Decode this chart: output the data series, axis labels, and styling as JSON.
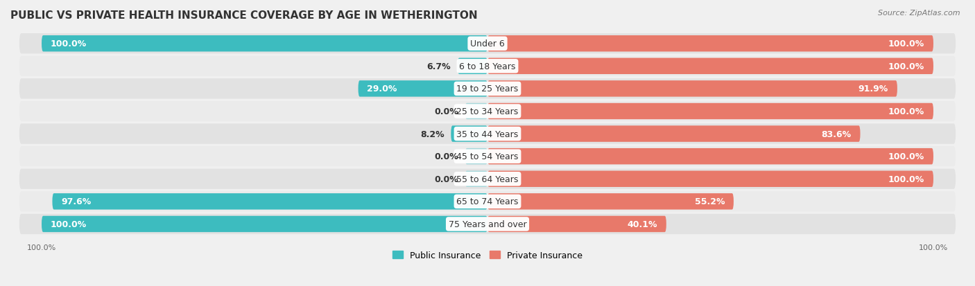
{
  "title": "Public vs Private Health Insurance Coverage by Age in Wetherington",
  "source": "Source: ZipAtlas.com",
  "categories": [
    "Under 6",
    "6 to 18 Years",
    "19 to 25 Years",
    "25 to 34 Years",
    "35 to 44 Years",
    "45 to 54 Years",
    "55 to 64 Years",
    "65 to 74 Years",
    "75 Years and over"
  ],
  "public_values": [
    100.0,
    6.7,
    29.0,
    0.0,
    8.2,
    0.0,
    0.0,
    97.6,
    100.0
  ],
  "private_values": [
    100.0,
    100.0,
    91.9,
    100.0,
    83.6,
    100.0,
    100.0,
    55.2,
    40.1
  ],
  "public_color": "#3dbcbf",
  "private_color": "#e8796a",
  "public_color_light": "#a8d8db",
  "private_color_light": "#f2c4bc",
  "row_bg_color_odd": "#e8e8e8",
  "row_bg_color_even": "#f5f5f5",
  "bg_color": "#f0f0f0",
  "label_dark": "#333333",
  "label_white": "#ffffff",
  "title_fontsize": 11,
  "bar_label_fontsize": 9,
  "cat_label_fontsize": 9,
  "source_fontsize": 8,
  "legend_fontsize": 9,
  "axis_label_fontsize": 8,
  "max_value": 100.0,
  "stub_value": 5.0
}
